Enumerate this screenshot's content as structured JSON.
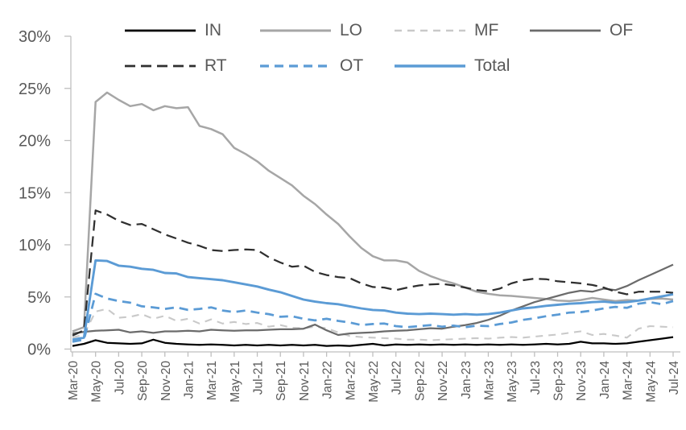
{
  "chart_data": {
    "type": "line",
    "title": "",
    "xlabel": "",
    "ylabel": "",
    "ylim": [
      0,
      30
    ],
    "y_tick_labels": [
      "0%",
      "5%",
      "10%",
      "15%",
      "20%",
      "25%",
      "30%"
    ],
    "y_tick_values": [
      0,
      5,
      10,
      15,
      20,
      25,
      30
    ],
    "grid": "off",
    "axis_color": "#bfbfbf",
    "tick_label_color": "#595959",
    "x_tick_labels": [
      "Mar-20",
      "May-20",
      "Jul-20",
      "Sep-20",
      "Nov-20",
      "Jan-21",
      "Mar-21",
      "May-21",
      "Jul-21",
      "Sep-21",
      "Nov-21",
      "Jan-22",
      "Mar-22",
      "May-22",
      "Jul-22",
      "Sep-22",
      "Nov-22",
      "Jan-23",
      "Mar-23",
      "May-23",
      "Jul-23",
      "Sep-23",
      "Nov-23",
      "Jan-24",
      "Mar-24",
      "May-24",
      "Jul-24"
    ],
    "x": [
      "Mar-20",
      "Apr-20",
      "May-20",
      "Jun-20",
      "Jul-20",
      "Aug-20",
      "Sep-20",
      "Oct-20",
      "Nov-20",
      "Dec-20",
      "Jan-21",
      "Feb-21",
      "Mar-21",
      "Apr-21",
      "May-21",
      "Jun-21",
      "Jul-21",
      "Aug-21",
      "Sep-21",
      "Oct-21",
      "Nov-21",
      "Dec-21",
      "Jan-22",
      "Feb-22",
      "Mar-22",
      "Apr-22",
      "May-22",
      "Jun-22",
      "Jul-22",
      "Aug-22",
      "Sep-22",
      "Oct-22",
      "Nov-22",
      "Dec-22",
      "Jan-23",
      "Feb-23",
      "Mar-23",
      "Apr-23",
      "May-23",
      "Jun-23",
      "Jul-23",
      "Aug-23",
      "Sep-23",
      "Oct-23",
      "Nov-23",
      "Dec-23",
      "Jan-24",
      "Feb-24",
      "Mar-24",
      "Apr-24",
      "May-24",
      "Jun-24",
      "Jul-24"
    ],
    "unit": "percent",
    "legend": {
      "position": "top",
      "rows": [
        [
          "IN",
          "LO",
          "MF",
          "OF"
        ],
        [
          "RT",
          "OT",
          "Total"
        ]
      ]
    },
    "series": [
      {
        "name": "IN",
        "color": "#000000",
        "dash": "solid",
        "width": 2.25,
        "values": [
          0.3,
          0.5,
          0.85,
          0.6,
          0.55,
          0.5,
          0.55,
          0.9,
          0.6,
          0.5,
          0.45,
          0.4,
          0.45,
          0.4,
          0.35,
          0.4,
          0.35,
          0.4,
          0.35,
          0.4,
          0.35,
          0.4,
          0.3,
          0.35,
          0.3,
          0.4,
          0.5,
          0.35,
          0.45,
          0.4,
          0.45,
          0.4,
          0.45,
          0.4,
          0.45,
          0.4,
          0.45,
          0.4,
          0.45,
          0.4,
          0.45,
          0.5,
          0.45,
          0.5,
          0.7,
          0.55,
          0.55,
          0.5,
          0.55,
          0.7,
          0.85,
          1.0,
          1.15
        ]
      },
      {
        "name": "LO",
        "color": "#a6a6a6",
        "dash": "solid",
        "width": 2.5,
        "values": [
          1.7,
          2.1,
          23.7,
          24.6,
          23.9,
          23.3,
          23.5,
          22.9,
          23.3,
          23.1,
          23.2,
          21.4,
          21.1,
          20.6,
          19.3,
          18.7,
          18.0,
          17.1,
          16.4,
          15.7,
          14.7,
          13.9,
          12.9,
          12.0,
          10.8,
          9.7,
          8.9,
          8.5,
          8.5,
          8.3,
          7.5,
          7.0,
          6.6,
          6.3,
          5.9,
          5.5,
          5.3,
          5.15,
          5.1,
          5.0,
          4.9,
          4.8,
          4.65,
          4.6,
          4.7,
          4.9,
          4.75,
          4.6,
          4.7,
          4.65,
          4.8,
          4.85,
          4.75
        ]
      },
      {
        "name": "MF",
        "color": "#c9c9c9",
        "dash": "dashed",
        "width": 2.1,
        "values": [
          1.1,
          1.4,
          3.6,
          3.85,
          3.0,
          3.1,
          3.35,
          2.9,
          3.2,
          2.7,
          2.9,
          2.45,
          2.85,
          2.45,
          2.6,
          2.4,
          2.5,
          2.15,
          2.3,
          2.05,
          2.0,
          2.15,
          2.0,
          1.6,
          1.25,
          1.15,
          1.1,
          1.05,
          1.0,
          0.9,
          0.9,
          0.85,
          0.9,
          0.95,
          1.0,
          1.05,
          1.0,
          1.1,
          1.15,
          1.1,
          1.2,
          1.3,
          1.4,
          1.55,
          1.7,
          1.35,
          1.45,
          1.3,
          1.1,
          1.95,
          2.2,
          2.15,
          2.1
        ]
      },
      {
        "name": "OF",
        "color": "#6b6b6b",
        "dash": "solid",
        "width": 2.25,
        "values": [
          1.5,
          1.65,
          1.75,
          1.8,
          1.85,
          1.6,
          1.7,
          1.55,
          1.7,
          1.7,
          1.75,
          1.7,
          1.85,
          1.8,
          1.75,
          1.8,
          1.8,
          1.85,
          1.9,
          1.9,
          1.95,
          2.35,
          1.8,
          1.35,
          1.5,
          1.55,
          1.6,
          1.7,
          1.75,
          1.8,
          1.9,
          2.0,
          1.95,
          2.15,
          2.3,
          2.5,
          2.8,
          3.2,
          3.7,
          4.1,
          4.5,
          4.8,
          5.1,
          5.4,
          5.6,
          5.5,
          5.8,
          5.65,
          6.05,
          6.6,
          7.1,
          7.6,
          8.1
        ]
      },
      {
        "name": "RT",
        "color": "#2f2f2f",
        "dash": "dashed",
        "width": 2.25,
        "values": [
          1.3,
          1.8,
          13.3,
          12.9,
          12.3,
          11.9,
          12.0,
          11.5,
          11.0,
          10.6,
          10.2,
          9.9,
          9.5,
          9.4,
          9.5,
          9.55,
          9.5,
          8.8,
          8.3,
          7.9,
          8.0,
          7.4,
          7.1,
          6.9,
          6.8,
          6.3,
          5.95,
          5.9,
          5.65,
          5.9,
          6.1,
          6.2,
          6.25,
          6.1,
          5.9,
          5.65,
          5.55,
          5.8,
          6.3,
          6.6,
          6.75,
          6.7,
          6.5,
          6.4,
          6.3,
          6.15,
          5.9,
          5.5,
          5.25,
          5.5,
          5.5,
          5.5,
          5.4
        ]
      },
      {
        "name": "OT",
        "color": "#5b9bd5",
        "dash": "dashed",
        "width": 2.75,
        "values": [
          0.7,
          0.9,
          5.3,
          4.85,
          4.6,
          4.45,
          4.1,
          4.0,
          3.85,
          4.0,
          3.75,
          3.85,
          4.0,
          3.7,
          3.55,
          3.7,
          3.5,
          3.35,
          3.1,
          3.15,
          2.9,
          2.75,
          2.9,
          2.7,
          2.55,
          2.3,
          2.4,
          2.45,
          2.2,
          2.1,
          2.2,
          2.3,
          2.15,
          2.25,
          2.1,
          2.25,
          2.2,
          2.4,
          2.55,
          2.8,
          2.95,
          3.15,
          3.3,
          3.5,
          3.55,
          3.7,
          3.9,
          4.05,
          3.95,
          4.35,
          4.5,
          4.3,
          4.6
        ]
      },
      {
        "name": "Total",
        "color": "#5b9bd5",
        "dash": "solid",
        "width": 2.9,
        "values": [
          0.9,
          1.1,
          8.5,
          8.45,
          8.0,
          7.9,
          7.7,
          7.6,
          7.3,
          7.25,
          6.9,
          6.8,
          6.7,
          6.6,
          6.4,
          6.2,
          6.0,
          5.7,
          5.45,
          5.1,
          4.75,
          4.55,
          4.4,
          4.3,
          4.1,
          3.9,
          3.75,
          3.7,
          3.5,
          3.4,
          3.35,
          3.4,
          3.35,
          3.3,
          3.35,
          3.3,
          3.35,
          3.5,
          3.7,
          3.9,
          4.0,
          4.15,
          4.25,
          4.35,
          4.4,
          4.5,
          4.55,
          4.45,
          4.5,
          4.65,
          4.85,
          5.05,
          5.25
        ]
      }
    ]
  }
}
